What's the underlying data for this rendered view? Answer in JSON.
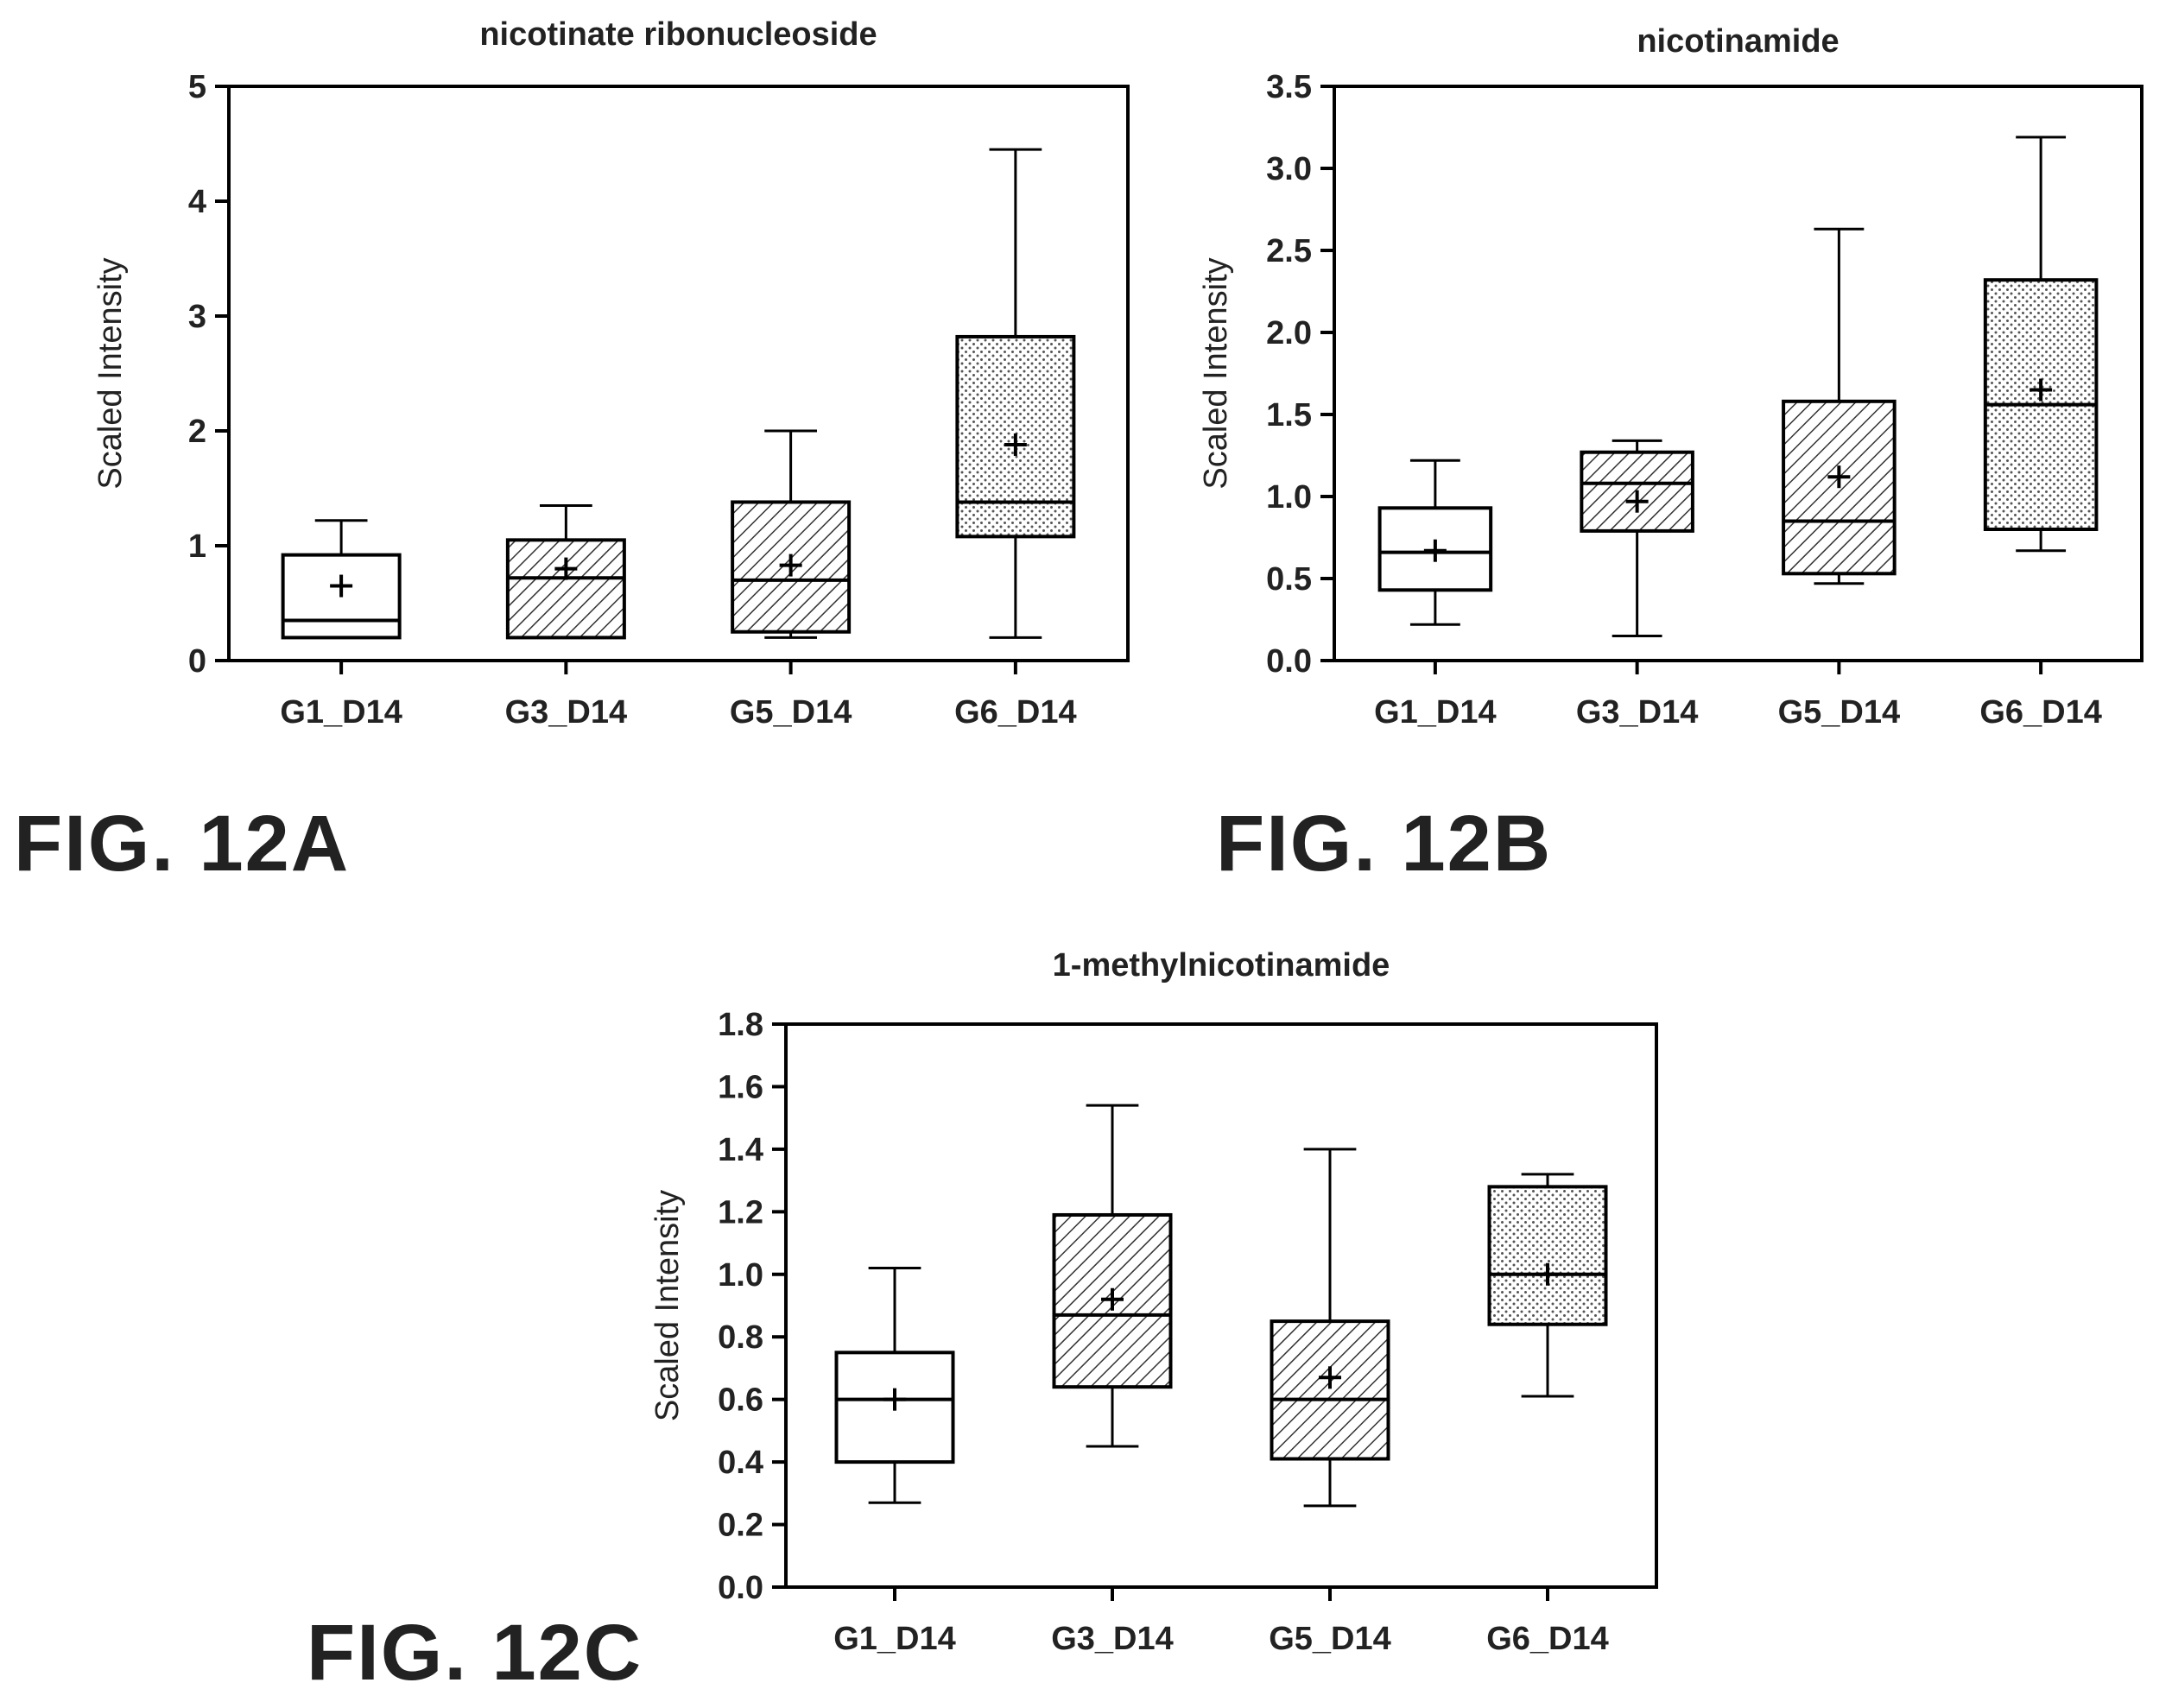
{
  "figure_labels": {
    "a": "FIG. 12A",
    "b": "FIG. 12B",
    "c": "FIG. 12C"
  },
  "chart_data": [
    {
      "type": "box",
      "title": "nicotinate ribonucleoside",
      "xlabel": "",
      "ylabel": "Scaled Intensity",
      "ylim": [
        0,
        5
      ],
      "yticks": [
        "0",
        "1",
        "2",
        "3",
        "4",
        "5"
      ],
      "categories": [
        "G1_D14",
        "G3_D14",
        "G5_D14",
        "G6_D14"
      ],
      "boxes": [
        {
          "min": 0.2,
          "q1": 0.2,
          "median": 0.35,
          "q3": 0.92,
          "max": 1.22,
          "mean": 0.65,
          "pattern": "open"
        },
        {
          "min": 0.2,
          "q1": 0.2,
          "median": 0.72,
          "q3": 1.05,
          "max": 1.35,
          "mean": 0.8,
          "pattern": "hatch"
        },
        {
          "min": 0.2,
          "q1": 0.25,
          "median": 0.7,
          "q3": 1.38,
          "max": 2.0,
          "mean": 0.83,
          "pattern": "hatch"
        },
        {
          "min": 0.2,
          "q1": 1.08,
          "median": 1.38,
          "q3": 2.82,
          "max": 4.45,
          "mean": 1.88,
          "pattern": "dots"
        }
      ]
    },
    {
      "type": "box",
      "title": "nicotinamide",
      "xlabel": "",
      "ylabel": "Scaled Intensity",
      "ylim": [
        0,
        3.5
      ],
      "yticks": [
        "0.0",
        "0.5",
        "1.0",
        "1.5",
        "2.0",
        "2.5",
        "3.0",
        "3.5"
      ],
      "categories": [
        "G1_D14",
        "G3_D14",
        "G5_D14",
        "G6_D14"
      ],
      "boxes": [
        {
          "min": 0.22,
          "q1": 0.43,
          "median": 0.66,
          "q3": 0.93,
          "max": 1.22,
          "mean": 0.67,
          "pattern": "open"
        },
        {
          "min": 0.15,
          "q1": 0.79,
          "median": 1.08,
          "q3": 1.27,
          "max": 1.34,
          "mean": 0.97,
          "pattern": "hatch"
        },
        {
          "min": 0.47,
          "q1": 0.53,
          "median": 0.85,
          "q3": 1.58,
          "max": 2.63,
          "mean": 1.12,
          "pattern": "hatch"
        },
        {
          "min": 0.67,
          "q1": 0.8,
          "median": 1.56,
          "q3": 2.32,
          "max": 3.19,
          "mean": 1.65,
          "pattern": "dots"
        }
      ]
    },
    {
      "type": "box",
      "title": "1-methylnicotinamide",
      "xlabel": "",
      "ylabel": "Scaled Intensity",
      "ylim": [
        0,
        1.8
      ],
      "yticks": [
        "0.0",
        "0.2",
        "0.4",
        "0.6",
        "0.8",
        "1.0",
        "1.2",
        "1.4",
        "1.6",
        "1.8"
      ],
      "categories": [
        "G1_D14",
        "G3_D14",
        "G5_D14",
        "G6_D14"
      ],
      "boxes": [
        {
          "min": 0.27,
          "q1": 0.4,
          "median": 0.6,
          "q3": 0.75,
          "max": 1.02,
          "mean": 0.6,
          "pattern": "open"
        },
        {
          "min": 0.45,
          "q1": 0.64,
          "median": 0.87,
          "q3": 1.19,
          "max": 1.54,
          "mean": 0.92,
          "pattern": "hatch"
        },
        {
          "min": 0.26,
          "q1": 0.41,
          "median": 0.6,
          "q3": 0.85,
          "max": 1.4,
          "mean": 0.67,
          "pattern": "hatch"
        },
        {
          "min": 0.61,
          "q1": 0.84,
          "median": 1.0,
          "q3": 1.28,
          "max": 1.32,
          "mean": 1.0,
          "pattern": "dots"
        }
      ]
    }
  ]
}
